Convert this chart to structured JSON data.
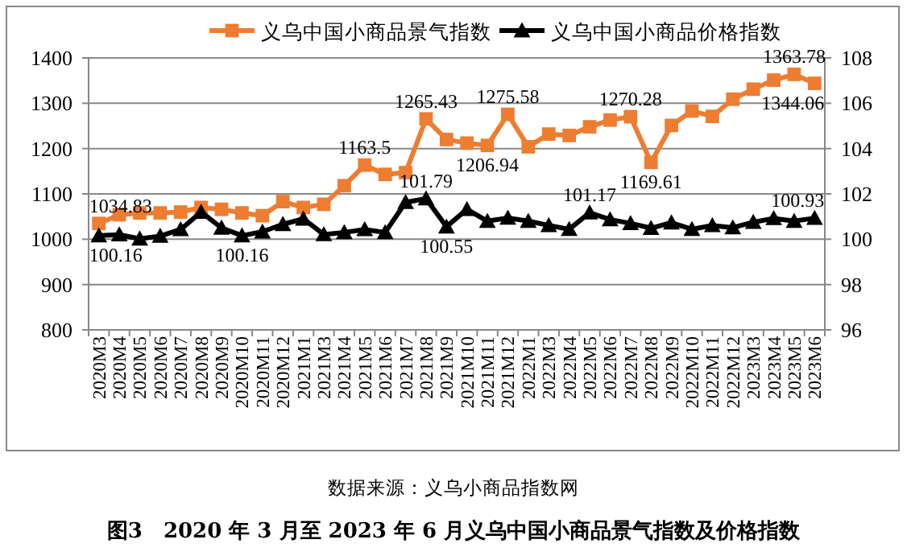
{
  "chart_data": {
    "type": "line",
    "title": "图3　2020 年 3 月至 2023 年 6 月义乌中国小商品景气指数及价格指数",
    "annotations": [
      "数据来源：义乌小商品指数网"
    ],
    "categories": [
      "2020M3",
      "2020M4",
      "2020M5",
      "2020M6",
      "2020M7",
      "2020M8",
      "2020M9",
      "2020M10",
      "2020M11",
      "2020M12",
      "2021M1",
      "2021M3",
      "2021M4",
      "2021M5",
      "2021M6",
      "2021M7",
      "2021M8",
      "2021M9",
      "2021M10",
      "2021M11",
      "2021M12",
      "2022M1",
      "2022M3",
      "2022M4",
      "2022M5",
      "2022M6",
      "2022M7",
      "2022M8",
      "2022M9",
      "2022M10",
      "2022M11",
      "2022M12",
      "2023M3",
      "2023M4",
      "2023M5",
      "2023M6"
    ],
    "series": [
      {
        "name": "义乌中国小商品景气指数",
        "color": "#ed7d31",
        "marker": "square",
        "values": [
          1034.83,
          1054,
          1058,
          1058,
          1060,
          1070,
          1066,
          1058,
          1052,
          1083,
          1070,
          1077,
          1118,
          1163.5,
          1143,
          1147,
          1265.43,
          1220,
          1212,
          1206.94,
          1275.58,
          1204,
          1232,
          1229,
          1248,
          1263,
          1270.28,
          1169.61,
          1251,
          1283,
          1271,
          1309,
          1331,
          1351,
          1363.78,
          1344.06
        ],
        "value_labels": [
          "1034.83",
          null,
          null,
          null,
          null,
          null,
          null,
          null,
          null,
          null,
          null,
          null,
          null,
          "1163.5",
          null,
          null,
          "1265.43",
          null,
          null,
          "1206.94",
          "1275.58",
          null,
          null,
          null,
          null,
          null,
          "1270.28",
          "1169.61",
          null,
          null,
          null,
          null,
          null,
          null,
          "1363.78",
          "1344.06"
        ]
      },
      {
        "name": "义乌中国小商品价格指数",
        "color": "#000000",
        "marker": "triangle",
        "axis": "y2",
        "values": [
          100.16,
          100.2,
          100.02,
          100.14,
          100.43,
          101.2,
          100.5,
          100.16,
          100.33,
          100.66,
          100.9,
          100.21,
          100.3,
          100.43,
          100.3,
          101.63,
          101.79,
          100.55,
          101.32,
          100.8,
          100.94,
          100.8,
          100.61,
          100.44,
          101.17,
          100.87,
          100.7,
          100.49,
          100.73,
          100.44,
          100.61,
          100.51,
          100.75,
          100.92,
          100.8,
          100.93
        ],
        "value_labels": [
          "100.16",
          null,
          null,
          null,
          null,
          null,
          null,
          "100.16",
          null,
          null,
          null,
          null,
          null,
          null,
          null,
          null,
          "101.79",
          "100.55",
          null,
          null,
          null,
          null,
          null,
          null,
          "101.17",
          null,
          null,
          null,
          null,
          null,
          null,
          null,
          null,
          null,
          null,
          "100.93"
        ]
      }
    ],
    "ylim": [
      800,
      1400
    ],
    "yticks": [
      800,
      900,
      1000,
      1100,
      1200,
      1300,
      1400
    ],
    "y2lim": [
      96,
      108
    ],
    "y2ticks": [
      96,
      98,
      100,
      102,
      104,
      106,
      108
    ],
    "grid": "y",
    "legend": "top",
    "line_style": "solid"
  }
}
